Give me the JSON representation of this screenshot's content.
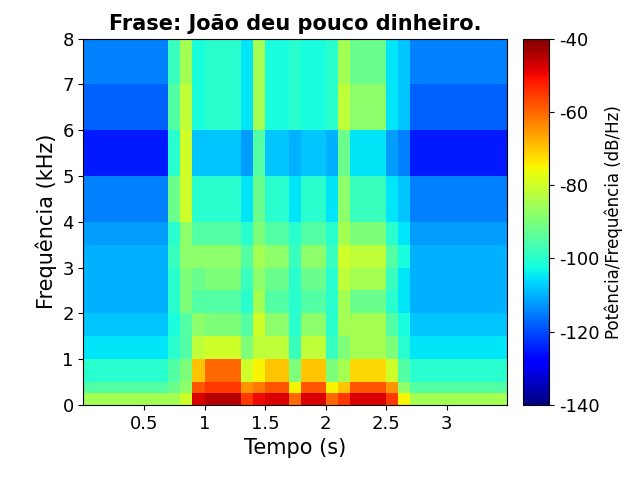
{
  "chart_data": {
    "type": "heatmap",
    "title": "Frase: João deu pouco dinheiro.",
    "x_label": "Tempo (s)",
    "y_label": "Frequência (kHz)",
    "colorbar_label": "Potência/Frequência (dB/Hz)",
    "xlim": [
      0,
      3.5
    ],
    "xticks": [
      0.5,
      1,
      1.5,
      2,
      2.5,
      3
    ],
    "ylim": [
      0,
      8
    ],
    "yticks": [
      0,
      1,
      2,
      3,
      4,
      5,
      6,
      7,
      8
    ],
    "colorbar_range": [
      -140,
      -40
    ],
    "colorbar_ticks": [
      -140,
      -120,
      -100,
      -80,
      -60,
      -40
    ],
    "time_edges": [
      0,
      0.1,
      0.2,
      0.3,
      0.4,
      0.5,
      0.6,
      0.7,
      0.8,
      0.9,
      1.0,
      1.1,
      1.2,
      1.3,
      1.4,
      1.5,
      1.6,
      1.7,
      1.8,
      1.9,
      2.0,
      2.1,
      2.2,
      2.3,
      2.4,
      2.5,
      2.6,
      2.7,
      2.8,
      2.9,
      3.0,
      3.1,
      3.2,
      3.3,
      3.4,
      3.5
    ],
    "freq_edges": [
      0,
      0.25,
      0.5,
      1,
      1.5,
      2,
      2.5,
      3,
      3.5,
      4,
      5,
      6,
      7,
      8
    ],
    "cells": [
      [
        -85,
        -85,
        -85,
        -85,
        -85,
        -85,
        -85,
        -85,
        -80,
        -48,
        -45,
        -45,
        -45,
        -55,
        -50,
        -48,
        -48,
        -60,
        -48,
        -48,
        -60,
        -55,
        -48,
        -48,
        -48,
        -55,
        -75,
        -85,
        -85,
        -85,
        -85,
        -85,
        -85,
        -85,
        -85
      ],
      [
        -95,
        -95,
        -95,
        -95,
        -95,
        -95,
        -95,
        -92,
        -88,
        -58,
        -55,
        -55,
        -55,
        -65,
        -62,
        -58,
        -58,
        -75,
        -58,
        -58,
        -75,
        -70,
        -58,
        -58,
        -58,
        -65,
        -88,
        -95,
        -95,
        -95,
        -95,
        -95,
        -95,
        -95,
        -95
      ],
      [
        -100,
        -100,
        -100,
        -100,
        -100,
        -100,
        -100,
        -95,
        -90,
        -70,
        -60,
        -60,
        -60,
        -80,
        -75,
        -70,
        -70,
        -90,
        -70,
        -70,
        -90,
        -85,
        -72,
        -72,
        -72,
        -80,
        -95,
        -100,
        -100,
        -100,
        -100,
        -100,
        -100,
        -100,
        -100
      ],
      [
        -105,
        -105,
        -105,
        -105,
        -105,
        -105,
        -105,
        -100,
        -95,
        -82,
        -80,
        -80,
        -80,
        -90,
        -82,
        -82,
        -82,
        -98,
        -82,
        -82,
        -98,
        -90,
        -85,
        -85,
        -85,
        -90,
        -100,
        -105,
        -105,
        -105,
        -105,
        -105,
        -105,
        -105,
        -105
      ],
      [
        -108,
        -108,
        -108,
        -108,
        -108,
        -108,
        -108,
        -102,
        -95,
        -88,
        -90,
        -90,
        -90,
        -95,
        -80,
        -88,
        -88,
        -100,
        -88,
        -88,
        -100,
        -85,
        -85,
        -85,
        -85,
        -95,
        -102,
        -108,
        -108,
        -108,
        -108,
        -108,
        -108,
        -108,
        -108
      ],
      [
        -110,
        -110,
        -110,
        -110,
        -110,
        -110,
        -110,
        -100,
        -90,
        -95,
        -95,
        -95,
        -95,
        -100,
        -85,
        -95,
        -95,
        -100,
        -95,
        -95,
        -100,
        -85,
        -92,
        -92,
        -92,
        -100,
        -105,
        -110,
        -110,
        -110,
        -110,
        -110,
        -110,
        -110,
        -110
      ],
      [
        -110,
        -110,
        -110,
        -110,
        -110,
        -110,
        -110,
        -100,
        -90,
        -92,
        -90,
        -90,
        -90,
        -98,
        -88,
        -92,
        -92,
        -100,
        -92,
        -92,
        -100,
        -82,
        -85,
        -85,
        -85,
        -98,
        -105,
        -110,
        -110,
        -110,
        -110,
        -110,
        -110,
        -110,
        -110
      ],
      [
        -110,
        -110,
        -110,
        -110,
        -110,
        -110,
        -110,
        -98,
        -88,
        -88,
        -88,
        -88,
        -88,
        -95,
        -85,
        -88,
        -88,
        -98,
        -88,
        -88,
        -98,
        -80,
        -82,
        -82,
        -82,
        -95,
        -102,
        -110,
        -110,
        -110,
        -110,
        -110,
        -110,
        -110,
        -110
      ],
      [
        -112,
        -112,
        -112,
        -112,
        -112,
        -112,
        -112,
        -100,
        -88,
        -95,
        -95,
        -95,
        -95,
        -100,
        -90,
        -95,
        -95,
        -100,
        -95,
        -95,
        -100,
        -85,
        -90,
        -90,
        -90,
        -100,
        -105,
        -112,
        -112,
        -112,
        -112,
        -112,
        -112,
        -112,
        -112
      ],
      [
        -115,
        -115,
        -115,
        -115,
        -115,
        -115,
        -115,
        -92,
        -80,
        -100,
        -100,
        -100,
        -100,
        -105,
        -92,
        -100,
        -100,
        -105,
        -100,
        -100,
        -105,
        -88,
        -98,
        -98,
        -98,
        -105,
        -108,
        -115,
        -115,
        -115,
        -115,
        -115,
        -115,
        -115,
        -115
      ],
      [
        -125,
        -125,
        -125,
        -125,
        -125,
        -125,
        -125,
        -100,
        -80,
        -108,
        -108,
        -108,
        -108,
        -112,
        -95,
        -108,
        -108,
        -110,
        -108,
        -108,
        -110,
        -92,
        -105,
        -105,
        -105,
        -112,
        -115,
        -125,
        -125,
        -125,
        -125,
        -125,
        -125,
        -125,
        -125
      ],
      [
        -118,
        -118,
        -118,
        -118,
        -118,
        -118,
        -118,
        -95,
        -82,
        -102,
        -100,
        -100,
        -100,
        -105,
        -85,
        -102,
        -102,
        -100,
        -102,
        -102,
        -100,
        -82,
        -88,
        -88,
        -88,
        -105,
        -108,
        -118,
        -118,
        -118,
        -118,
        -118,
        -118,
        -118,
        -118
      ],
      [
        -115,
        -115,
        -115,
        -115,
        -115,
        -115,
        -115,
        -98,
        -85,
        -102,
        -100,
        -100,
        -100,
        -105,
        -85,
        -102,
        -102,
        -100,
        -102,
        -102,
        -100,
        -85,
        -92,
        -92,
        -92,
        -105,
        -108,
        -115,
        -115,
        -115,
        -115,
        -115,
        -115,
        -115,
        -115
      ]
    ]
  }
}
